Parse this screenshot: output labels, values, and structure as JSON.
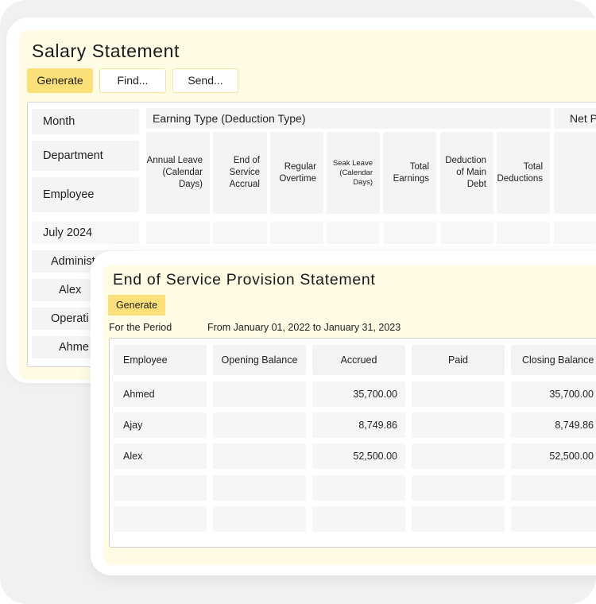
{
  "salary": {
    "title": "Salary Statement",
    "buttons": {
      "generate": "Generate",
      "find": "Find...",
      "send": "Send..."
    },
    "labels": {
      "month": "Month",
      "department": "Department",
      "employee": "Employee"
    },
    "header": {
      "earning_type": "Earning Type (Deduction Type)",
      "net": "Net P"
    },
    "columns": [
      "Annual Leave (Calendar Days)",
      "End of Service Accrual",
      "Regular Overtime",
      "Seak Leave (Calendar Days)",
      "Total Earnings",
      "Deduction of Main Debt",
      "Total Deductions"
    ],
    "rows": {
      "month_value": "July 2024",
      "dept_value": "Administ",
      "employee_1": "Alex",
      "dept_value_2": "Operati",
      "employee_2": "Ahme"
    }
  },
  "eos": {
    "title": "End of Service Provision Statement",
    "generate_label": "Generate",
    "period_label": "For the Period",
    "period_value": "From January 01, 2022 to January 31, 2023",
    "headers": [
      "Employee",
      "Opening Balance",
      "Accrued",
      "Paid",
      "Closing Balance"
    ],
    "rows": [
      {
        "employee": "Ahmed",
        "opening": "",
        "accrued": "35,700.00",
        "paid": "",
        "closing": "35,700.00"
      },
      {
        "employee": "Ajay",
        "opening": "",
        "accrued": "8,749.86",
        "paid": "",
        "closing": "8,749.86"
      },
      {
        "employee": "Alex",
        "opening": "",
        "accrued": "52,500.00",
        "paid": "",
        "closing": "52,500.00"
      }
    ]
  },
  "colors": {
    "accent": "#fbe07a",
    "window_bg": "#fffbe4",
    "cell_bg": "#f4f4f4"
  }
}
